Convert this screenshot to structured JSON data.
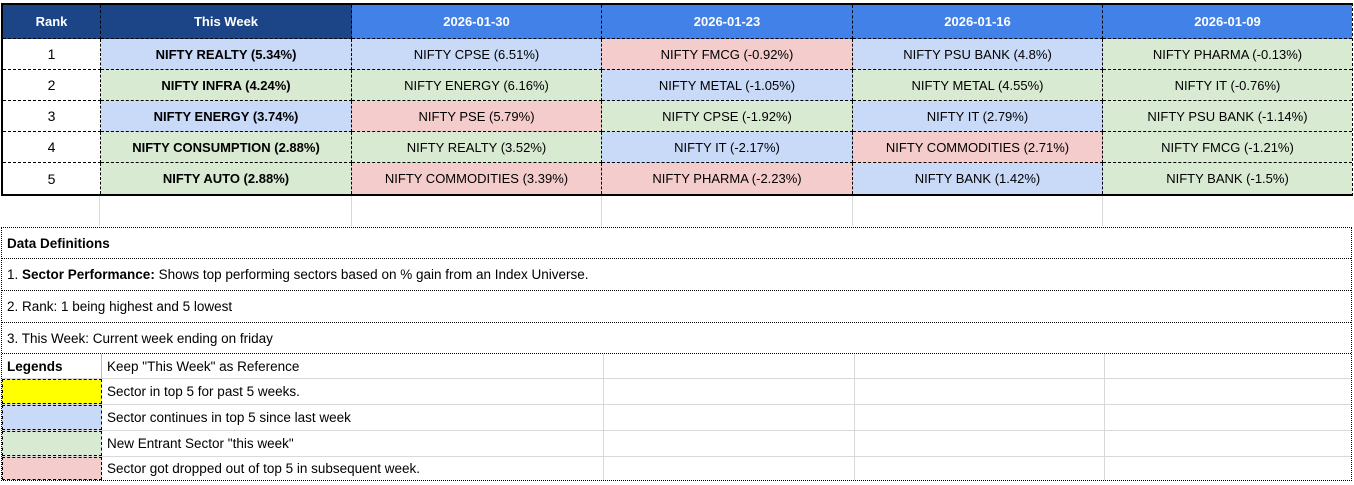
{
  "colors": {
    "header_dark": "#1c4587",
    "header_blue": "#4181e8",
    "light_blue": "#c9daf8",
    "light_green": "#d9ead3",
    "light_pink": "#f4cccc",
    "yellow": "#ffff00"
  },
  "table": {
    "headers": [
      "Rank",
      "This Week",
      "2026-01-30",
      "2026-01-23",
      "2026-01-16",
      "2026-01-09"
    ],
    "rows": [
      {
        "rank": "1",
        "cells": [
          {
            "text": "NIFTY REALTY (5.34%)",
            "color": "light_blue",
            "bold": true
          },
          {
            "text": "NIFTY CPSE (6.51%)",
            "color": "light_blue",
            "bold": false
          },
          {
            "text": "NIFTY FMCG (-0.92%)",
            "color": "light_pink",
            "bold": false
          },
          {
            "text": "NIFTY PSU BANK (4.8%)",
            "color": "light_blue",
            "bold": false
          },
          {
            "text": "NIFTY PHARMA (-0.13%)",
            "color": "light_green",
            "bold": false
          }
        ]
      },
      {
        "rank": "2",
        "cells": [
          {
            "text": "NIFTY INFRA (4.24%)",
            "color": "light_green",
            "bold": true
          },
          {
            "text": "NIFTY ENERGY (6.16%)",
            "color": "light_green",
            "bold": false
          },
          {
            "text": "NIFTY METAL (-1.05%)",
            "color": "light_blue",
            "bold": false
          },
          {
            "text": "NIFTY METAL (4.55%)",
            "color": "light_green",
            "bold": false
          },
          {
            "text": "NIFTY IT (-0.76%)",
            "color": "light_green",
            "bold": false
          }
        ]
      },
      {
        "rank": "3",
        "cells": [
          {
            "text": "NIFTY ENERGY (3.74%)",
            "color": "light_blue",
            "bold": true
          },
          {
            "text": "NIFTY PSE (5.79%)",
            "color": "light_pink",
            "bold": false
          },
          {
            "text": "NIFTY CPSE (-1.92%)",
            "color": "light_green",
            "bold": false
          },
          {
            "text": "NIFTY IT (2.79%)",
            "color": "light_blue",
            "bold": false
          },
          {
            "text": "NIFTY PSU BANK (-1.14%)",
            "color": "light_green",
            "bold": false
          }
        ]
      },
      {
        "rank": "4",
        "cells": [
          {
            "text": "NIFTY CONSUMPTION (2.88%)",
            "color": "light_green",
            "bold": true
          },
          {
            "text": "NIFTY REALTY (3.52%)",
            "color": "light_green",
            "bold": false
          },
          {
            "text": "NIFTY IT (-2.17%)",
            "color": "light_blue",
            "bold": false
          },
          {
            "text": "NIFTY COMMODITIES (2.71%)",
            "color": "light_pink",
            "bold": false
          },
          {
            "text": "NIFTY FMCG (-1.21%)",
            "color": "light_green",
            "bold": false
          }
        ]
      },
      {
        "rank": "5",
        "cells": [
          {
            "text": "NIFTY AUTO (2.88%)",
            "color": "light_green",
            "bold": true
          },
          {
            "text": "NIFTY COMMODITIES (3.39%)",
            "color": "light_pink",
            "bold": false
          },
          {
            "text": "NIFTY PHARMA (-2.23%)",
            "color": "light_pink",
            "bold": false
          },
          {
            "text": "NIFTY BANK (1.42%)",
            "color": "light_blue",
            "bold": false
          },
          {
            "text": "NIFTY BANK (-1.5%)",
            "color": "light_green",
            "bold": false
          }
        ]
      }
    ]
  },
  "definitions": {
    "title": "Data Definitions",
    "items": [
      {
        "prefix": "1. ",
        "bold": "Sector Performance:",
        "rest": " Shows top performing sectors based on % gain from an Index Universe."
      },
      {
        "prefix": "2. Rank: 1 being highest and 5 lowest",
        "bold": "",
        "rest": ""
      },
      {
        "prefix": "3. This Week: Current week ending on friday",
        "bold": "",
        "rest": ""
      }
    ]
  },
  "legends": {
    "label": "Legends",
    "reference": "Keep \"This Week\" as Reference",
    "items": [
      {
        "color": "yellow",
        "meaning": "Sector in top 5 for past 5 weeks."
      },
      {
        "color": "light_blue",
        "meaning": "Sector continues in top 5 since last week"
      },
      {
        "color": "light_green",
        "meaning": "New Entrant Sector \"this week\""
      },
      {
        "color": "light_pink",
        "meaning": "Sector got dropped out of top 5 in subsequent week."
      }
    ]
  }
}
